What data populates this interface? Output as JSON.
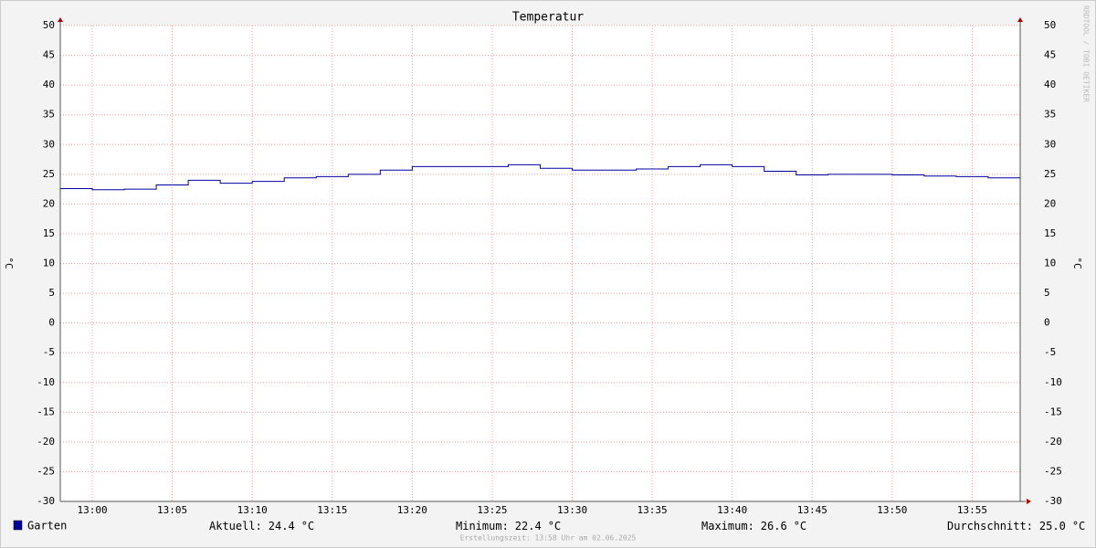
{
  "chart_data": {
    "type": "step",
    "title": "Temperatur",
    "y_label": "°C",
    "x": [
      "12:58",
      "13:00",
      "13:02",
      "13:04",
      "13:06",
      "13:08",
      "13:10",
      "13:12",
      "13:14",
      "13:16",
      "13:18",
      "13:20",
      "13:22",
      "13:24",
      "13:26",
      "13:28",
      "13:30",
      "13:32",
      "13:34",
      "13:36",
      "13:38",
      "13:40",
      "13:42",
      "13:44",
      "13:46",
      "13:48",
      "13:50",
      "13:52",
      "13:54",
      "13:56"
    ],
    "xlim": [
      "12:58",
      "13:58"
    ],
    "xticks": [
      "13:00",
      "13:05",
      "13:10",
      "13:15",
      "13:20",
      "13:25",
      "13:30",
      "13:35",
      "13:40",
      "13:45",
      "13:50",
      "13:55"
    ],
    "ylim": [
      -30,
      50
    ],
    "yticks": [
      50,
      45,
      40,
      35,
      30,
      25,
      20,
      15,
      10,
      5,
      0,
      -5,
      -10,
      -15,
      -20,
      -25,
      -30
    ],
    "grid": true,
    "series": [
      {
        "name": "Garten",
        "color": "#0000a0",
        "values": [
          22.6,
          22.4,
          22.5,
          23.2,
          24.0,
          23.5,
          23.8,
          24.4,
          24.6,
          25.0,
          25.7,
          26.3,
          26.3,
          26.3,
          26.6,
          26.0,
          25.7,
          25.7,
          25.9,
          26.3,
          26.6,
          26.3,
          25.5,
          24.9,
          25.0,
          25.0,
          24.9,
          24.7,
          24.6,
          24.4
        ]
      }
    ],
    "unit": "°C",
    "stats": [
      {
        "label": "Aktuell:",
        "value": "24.4"
      },
      {
        "label": "Minimum:",
        "value": "22.4"
      },
      {
        "label": "Maximum:",
        "value": "26.6"
      },
      {
        "label": "Durchschnitt:",
        "value": "25.0"
      }
    ],
    "footer": "Erstellungszeit: 13:58 Uhr am 02.06.2025",
    "watermark": "RRDTOOL / TOBI OETIKER"
  }
}
